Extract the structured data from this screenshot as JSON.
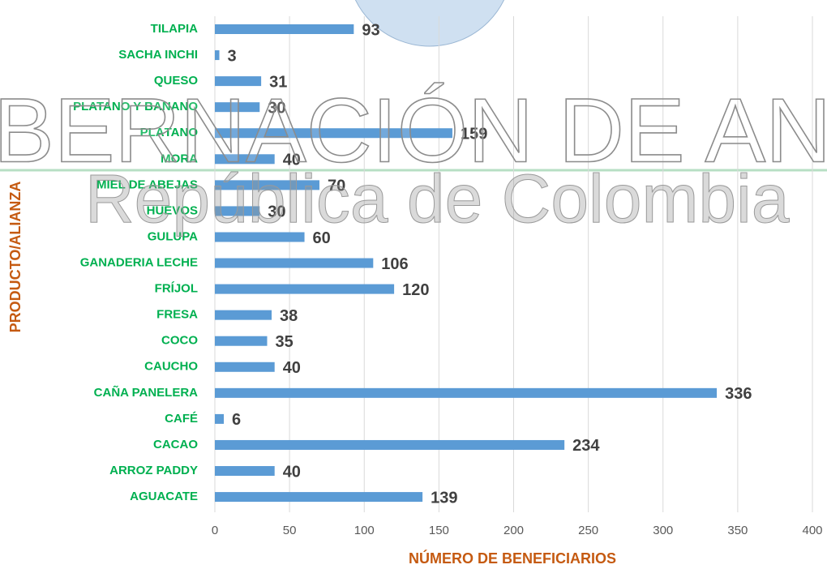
{
  "chart_data": {
    "type": "bar",
    "orientation": "horizontal",
    "watermark": [
      "BERNACIÓN DE ANTIOQ",
      "República de Colombia"
    ],
    "xlabel": "NÚMERO DE BENEFICIARIOS",
    "ylabel": "PRODUCTO/ALIANZA",
    "categories": [
      "TILAPIA",
      "SACHA INCHI",
      "QUESO",
      "PLATANO Y BANANO",
      "PLÁTANO",
      "MORA",
      "MIEL DE ABEJAS",
      "HUEVOS",
      "GULUPA",
      "GANADERIA LECHE",
      "FRÍJOL",
      "FRESA",
      "COCO",
      "CAUCHO",
      "CAÑA PANELERA",
      "CAFÉ",
      "CACAO",
      "ARROZ PADDY",
      "AGUACATE"
    ],
    "values": [
      93,
      3,
      31,
      30,
      159,
      40,
      70,
      30,
      60,
      106,
      120,
      38,
      35,
      40,
      336,
      6,
      234,
      40,
      139
    ],
    "color": "#5b9bd5",
    "xlim": [
      0,
      400
    ],
    "xticks": [
      0,
      50,
      100,
      150,
      200,
      250,
      300,
      350,
      400
    ],
    "grid": true
  }
}
